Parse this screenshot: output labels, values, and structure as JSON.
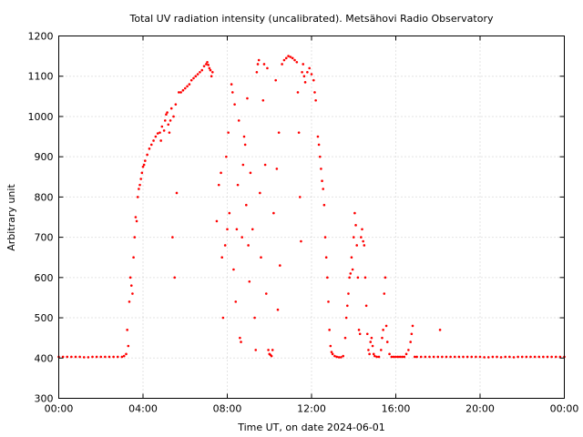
{
  "chart_data": {
    "type": "scatter",
    "title": "Total UV radiation intensity (uncalibrated). Metsähovi Radio Observatory",
    "xlabel": "Time UT, on date 2024-06-01",
    "ylabel": "Arbitrary unit",
    "xlim": [
      0,
      24
    ],
    "ylim": [
      300,
      1200
    ],
    "x_ticks": [
      {
        "value": 0,
        "label": "00:00"
      },
      {
        "value": 4,
        "label": "04:00"
      },
      {
        "value": 8,
        "label": "08:00"
      },
      {
        "value": 12,
        "label": "12:00"
      },
      {
        "value": 16,
        "label": "16:00"
      },
      {
        "value": 20,
        "label": "20:00"
      },
      {
        "value": 24,
        "label": "00:00"
      }
    ],
    "y_ticks": [
      {
        "value": 300,
        "label": "300"
      },
      {
        "value": 400,
        "label": "400"
      },
      {
        "value": 500,
        "label": "500"
      },
      {
        "value": 600,
        "label": "600"
      },
      {
        "value": 700,
        "label": "700"
      },
      {
        "value": 800,
        "label": "800"
      },
      {
        "value": 900,
        "label": "900"
      },
      {
        "value": 1000,
        "label": "1000"
      },
      {
        "value": 1100,
        "label": "1100"
      },
      {
        "value": 1200,
        "label": "1200"
      }
    ],
    "grid": true,
    "marker_color": "#ff0000",
    "series": [
      {
        "points": [
          [
            0.0,
            403
          ],
          [
            0.2,
            403
          ],
          [
            0.4,
            403
          ],
          [
            0.6,
            403
          ],
          [
            0.8,
            403
          ],
          [
            1.0,
            403
          ],
          [
            1.2,
            402
          ],
          [
            1.4,
            402
          ],
          [
            1.6,
            403
          ],
          [
            1.8,
            403
          ],
          [
            2.0,
            403
          ],
          [
            2.2,
            403
          ],
          [
            2.4,
            403
          ],
          [
            2.6,
            403
          ],
          [
            2.8,
            403
          ],
          [
            3.0,
            403
          ],
          [
            3.1,
            405
          ],
          [
            3.2,
            410
          ],
          [
            3.25,
            470
          ],
          [
            3.3,
            430
          ],
          [
            3.35,
            540
          ],
          [
            3.4,
            600
          ],
          [
            3.45,
            580
          ],
          [
            3.5,
            560
          ],
          [
            3.55,
            650
          ],
          [
            3.6,
            700
          ],
          [
            3.65,
            750
          ],
          [
            3.7,
            740
          ],
          [
            3.75,
            800
          ],
          [
            3.8,
            820
          ],
          [
            3.85,
            830
          ],
          [
            3.9,
            845
          ],
          [
            3.95,
            860
          ],
          [
            4.0,
            875
          ],
          [
            4.05,
            880
          ],
          [
            4.1,
            890
          ],
          [
            4.2,
            905
          ],
          [
            4.3,
            920
          ],
          [
            4.4,
            930
          ],
          [
            4.5,
            940
          ],
          [
            4.6,
            950
          ],
          [
            4.7,
            958
          ],
          [
            4.8,
            960
          ],
          [
            4.85,
            940
          ],
          [
            4.9,
            975
          ],
          [
            5.0,
            965
          ],
          [
            5.05,
            990
          ],
          [
            5.1,
            1005
          ],
          [
            5.15,
            1010
          ],
          [
            5.2,
            980
          ],
          [
            5.25,
            960
          ],
          [
            5.3,
            990
          ],
          [
            5.35,
            1020
          ],
          [
            5.4,
            700
          ],
          [
            5.45,
            1000
          ],
          [
            5.5,
            600
          ],
          [
            5.55,
            1030
          ],
          [
            5.6,
            810
          ],
          [
            5.7,
            1060
          ],
          [
            5.8,
            1060
          ],
          [
            5.9,
            1065
          ],
          [
            6.0,
            1070
          ],
          [
            6.1,
            1075
          ],
          [
            6.2,
            1080
          ],
          [
            6.3,
            1090
          ],
          [
            6.4,
            1095
          ],
          [
            6.5,
            1100
          ],
          [
            6.6,
            1105
          ],
          [
            6.7,
            1110
          ],
          [
            6.8,
            1115
          ],
          [
            6.9,
            1125
          ],
          [
            7.0,
            1130
          ],
          [
            7.05,
            1135
          ],
          [
            7.1,
            1128
          ],
          [
            7.15,
            1120
          ],
          [
            7.2,
            1115
          ],
          [
            7.25,
            1100
          ],
          [
            7.3,
            1110
          ],
          [
            7.5,
            740
          ],
          [
            7.6,
            830
          ],
          [
            7.7,
            860
          ],
          [
            7.75,
            650
          ],
          [
            7.8,
            500
          ],
          [
            7.9,
            680
          ],
          [
            7.95,
            900
          ],
          [
            8.0,
            720
          ],
          [
            8.05,
            960
          ],
          [
            8.1,
            760
          ],
          [
            8.2,
            1080
          ],
          [
            8.25,
            1060
          ],
          [
            8.3,
            620
          ],
          [
            8.35,
            1030
          ],
          [
            8.4,
            540
          ],
          [
            8.45,
            720
          ],
          [
            8.5,
            830
          ],
          [
            8.55,
            990
          ],
          [
            8.6,
            450
          ],
          [
            8.65,
            440
          ],
          [
            8.7,
            700
          ],
          [
            8.75,
            880
          ],
          [
            8.8,
            950
          ],
          [
            8.85,
            930
          ],
          [
            8.9,
            780
          ],
          [
            8.95,
            1045
          ],
          [
            9.0,
            680
          ],
          [
            9.05,
            590
          ],
          [
            9.1,
            860
          ],
          [
            9.2,
            720
          ],
          [
            9.3,
            500
          ],
          [
            9.35,
            420
          ],
          [
            9.4,
            1110
          ],
          [
            9.45,
            1130
          ],
          [
            9.5,
            1140
          ],
          [
            9.55,
            810
          ],
          [
            9.6,
            650
          ],
          [
            9.7,
            1040
          ],
          [
            9.75,
            1130
          ],
          [
            9.8,
            880
          ],
          [
            9.85,
            560
          ],
          [
            9.9,
            1120
          ],
          [
            9.95,
            420
          ],
          [
            10.0,
            410
          ],
          [
            10.05,
            408
          ],
          [
            10.1,
            405
          ],
          [
            10.15,
            420
          ],
          [
            10.2,
            760
          ],
          [
            10.3,
            1090
          ],
          [
            10.35,
            870
          ],
          [
            10.4,
            520
          ],
          [
            10.45,
            960
          ],
          [
            10.5,
            630
          ],
          [
            10.6,
            1130
          ],
          [
            10.7,
            1140
          ],
          [
            10.8,
            1145
          ],
          [
            10.9,
            1150
          ],
          [
            11.0,
            1148
          ],
          [
            11.1,
            1145
          ],
          [
            11.2,
            1140
          ],
          [
            11.3,
            1135
          ],
          [
            11.35,
            1060
          ],
          [
            11.4,
            960
          ],
          [
            11.45,
            800
          ],
          [
            11.5,
            690
          ],
          [
            11.55,
            1110
          ],
          [
            11.6,
            1130
          ],
          [
            11.65,
            1100
          ],
          [
            11.7,
            1085
          ],
          [
            11.8,
            1110
          ],
          [
            11.9,
            1120
          ],
          [
            12.0,
            1105
          ],
          [
            12.1,
            1090
          ],
          [
            12.15,
            1060
          ],
          [
            12.2,
            1040
          ],
          [
            12.3,
            950
          ],
          [
            12.35,
            930
          ],
          [
            12.4,
            900
          ],
          [
            12.45,
            870
          ],
          [
            12.5,
            840
          ],
          [
            12.55,
            820
          ],
          [
            12.6,
            780
          ],
          [
            12.65,
            700
          ],
          [
            12.7,
            650
          ],
          [
            12.75,
            600
          ],
          [
            12.8,
            540
          ],
          [
            12.85,
            470
          ],
          [
            12.9,
            430
          ],
          [
            12.95,
            415
          ],
          [
            13.0,
            410
          ],
          [
            13.1,
            405
          ],
          [
            13.2,
            403
          ],
          [
            13.3,
            402
          ],
          [
            13.4,
            402
          ],
          [
            13.5,
            405
          ],
          [
            13.6,
            450
          ],
          [
            13.65,
            500
          ],
          [
            13.7,
            530
          ],
          [
            13.75,
            560
          ],
          [
            13.8,
            600
          ],
          [
            13.85,
            610
          ],
          [
            13.9,
            650
          ],
          [
            13.95,
            620
          ],
          [
            14.0,
            700
          ],
          [
            14.05,
            760
          ],
          [
            14.1,
            730
          ],
          [
            14.15,
            680
          ],
          [
            14.2,
            600
          ],
          [
            14.25,
            470
          ],
          [
            14.3,
            460
          ],
          [
            14.35,
            700
          ],
          [
            14.4,
            720
          ],
          [
            14.45,
            690
          ],
          [
            14.5,
            680
          ],
          [
            14.55,
            600
          ],
          [
            14.6,
            530
          ],
          [
            14.65,
            460
          ],
          [
            14.7,
            420
          ],
          [
            14.75,
            410
          ],
          [
            14.8,
            440
          ],
          [
            14.85,
            450
          ],
          [
            14.9,
            430
          ],
          [
            14.95,
            410
          ],
          [
            15.0,
            405
          ],
          [
            15.1,
            403
          ],
          [
            15.2,
            403
          ],
          [
            15.3,
            420
          ],
          [
            15.35,
            450
          ],
          [
            15.4,
            470
          ],
          [
            15.45,
            560
          ],
          [
            15.5,
            600
          ],
          [
            15.55,
            480
          ],
          [
            15.6,
            440
          ],
          [
            15.7,
            410
          ],
          [
            15.8,
            403
          ],
          [
            15.9,
            403
          ],
          [
            16.0,
            403
          ],
          [
            16.1,
            403
          ],
          [
            16.2,
            403
          ],
          [
            16.3,
            403
          ],
          [
            16.4,
            403
          ],
          [
            16.5,
            410
          ],
          [
            16.6,
            420
          ],
          [
            16.7,
            440
          ],
          [
            16.75,
            460
          ],
          [
            16.8,
            480
          ],
          [
            16.9,
            403
          ],
          [
            17.0,
            403
          ],
          [
            17.2,
            403
          ],
          [
            17.4,
            403
          ],
          [
            17.6,
            403
          ],
          [
            17.8,
            403
          ],
          [
            18.0,
            403
          ],
          [
            18.1,
            470
          ],
          [
            18.2,
            403
          ],
          [
            18.4,
            403
          ],
          [
            18.6,
            403
          ],
          [
            18.8,
            403
          ],
          [
            19.0,
            403
          ],
          [
            19.2,
            403
          ],
          [
            19.4,
            403
          ],
          [
            19.6,
            403
          ],
          [
            19.8,
            403
          ],
          [
            20.0,
            403
          ],
          [
            20.2,
            402
          ],
          [
            20.4,
            402
          ],
          [
            20.6,
            403
          ],
          [
            20.8,
            403
          ],
          [
            21.0,
            402
          ],
          [
            21.2,
            403
          ],
          [
            21.4,
            403
          ],
          [
            21.6,
            402
          ],
          [
            21.8,
            403
          ],
          [
            22.0,
            403
          ],
          [
            22.2,
            403
          ],
          [
            22.4,
            403
          ],
          [
            22.6,
            403
          ],
          [
            22.8,
            403
          ],
          [
            23.0,
            403
          ],
          [
            23.2,
            403
          ],
          [
            23.4,
            403
          ],
          [
            23.6,
            403
          ],
          [
            23.8,
            403
          ],
          [
            24.0,
            403
          ]
        ]
      }
    ]
  }
}
